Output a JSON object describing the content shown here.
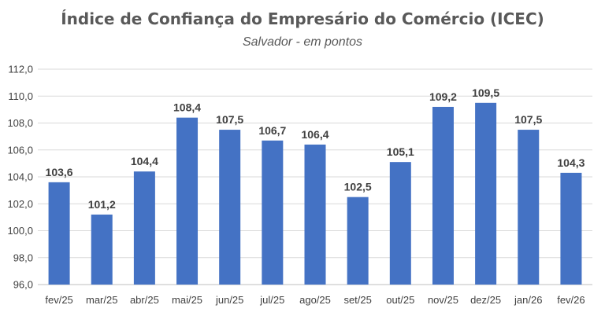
{
  "chart_data": {
    "type": "bar",
    "title": "Índice de Confiança do Empresário do Comércio (ICEC)",
    "subtitle": "Salvador - em pontos",
    "categories": [
      "fev/25",
      "mar/25",
      "abr/25",
      "mai/25",
      "jun/25",
      "jul/25",
      "ago/25",
      "set/25",
      "out/25",
      "nov/25",
      "dez/25",
      "jan/26",
      "fev/26"
    ],
    "values": [
      103.6,
      101.2,
      104.4,
      108.4,
      107.5,
      106.7,
      106.4,
      102.5,
      105.1,
      109.2,
      109.5,
      107.5,
      104.3
    ],
    "value_labels": [
      "103,6",
      "101,2",
      "104,4",
      "108,4",
      "107,5",
      "106,7",
      "106,4",
      "102,5",
      "105,1",
      "109,2",
      "109,5",
      "107,5",
      "104,3"
    ],
    "yticks": [
      96,
      98,
      100,
      102,
      104,
      106,
      108,
      110,
      112
    ],
    "ytick_labels": [
      "96,0",
      "98,0",
      "100,0",
      "102,0",
      "104,0",
      "106,0",
      "108,0",
      "110,0",
      "112,0"
    ],
    "ylim": [
      96,
      112
    ],
    "grid": true,
    "legend": "none",
    "bar_color": "#4472C4",
    "grid_color": "#D9D9D9",
    "axis_color": "#BFBFBF"
  }
}
